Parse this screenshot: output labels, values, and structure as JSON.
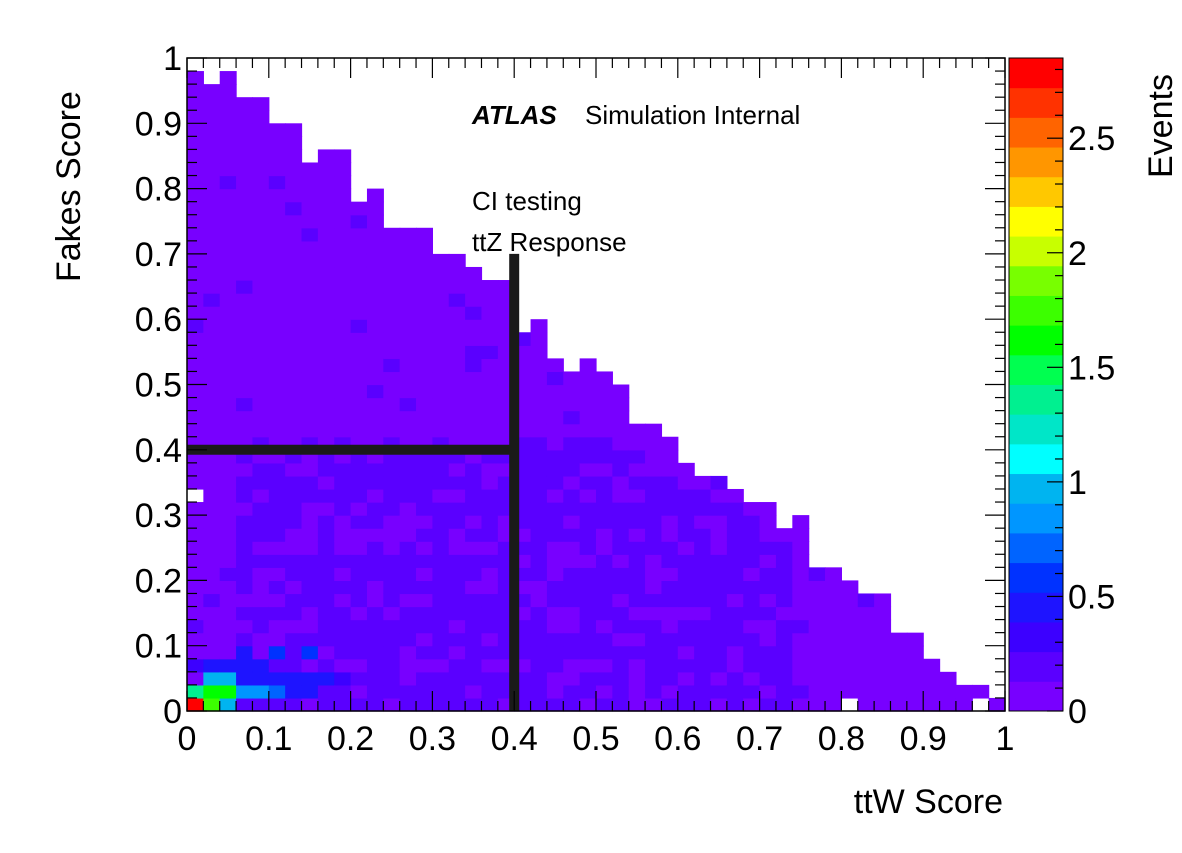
{
  "chart_data": {
    "type": "heatmap",
    "title": "",
    "xlabel": "ttW Score",
    "ylabel": "Fakes Score",
    "zlabel": "Events",
    "xlim": [
      0,
      1
    ],
    "ylim": [
      0,
      1
    ],
    "zlim": [
      0,
      2.85
    ],
    "grid": false,
    "nbins": 50,
    "x_ticks": [
      "0",
      "0.1",
      "0.2",
      "0.3",
      "0.4",
      "0.5",
      "0.6",
      "0.7",
      "0.8",
      "0.9",
      "1"
    ],
    "y_ticks": [
      "0",
      "0.1",
      "0.2",
      "0.3",
      "0.4",
      "0.5",
      "0.6",
      "0.7",
      "0.8",
      "0.9",
      "1"
    ],
    "z_ticks": [
      "0",
      "0.5",
      "1",
      "1.5",
      "2",
      "2.5"
    ],
    "annotations": {
      "atlas_label": "ATLAS",
      "atlas_sublabel": "Simulation Internal",
      "line1": "CI testing",
      "line2": "ttZ Response"
    },
    "cut_lines": [
      {
        "orientation": "vertical",
        "x": 0.4,
        "y_range": [
          0,
          0.7
        ]
      },
      {
        "orientation": "horizontal",
        "y": 0.4,
        "x_range": [
          0,
          0.4
        ]
      }
    ],
    "palette": [
      "#7800ff",
      "#5a00ff",
      "#3c00ff",
      "#1e14ff",
      "#0032ff",
      "#0064ff",
      "#0096ff",
      "#00b4f0",
      "#00ffff",
      "#00e6c8",
      "#00f090",
      "#00ff50",
      "#00ff00",
      "#3cff00",
      "#78ff00",
      "#c8ff00",
      "#ffff00",
      "#ffc800",
      "#ff9600",
      "#ff6400",
      "#ff3200",
      "#ff0000"
    ],
    "hot_bins": [
      {
        "x": 0.01,
        "y": 0.01,
        "value": 2.8
      },
      {
        "x": 0.03,
        "y": 0.01,
        "value": 1.8
      },
      {
        "x": 0.05,
        "y": 0.01,
        "value": 0.95
      },
      {
        "x": 0.01,
        "y": 0.03,
        "value": 1.3
      },
      {
        "x": 0.03,
        "y": 0.03,
        "value": 1.6
      },
      {
        "x": 0.05,
        "y": 0.03,
        "value": 1.6
      },
      {
        "x": 0.07,
        "y": 0.03,
        "value": 0.9
      },
      {
        "x": 0.09,
        "y": 0.03,
        "value": 0.8
      },
      {
        "x": 0.11,
        "y": 0.03,
        "value": 0.65
      },
      {
        "x": 0.13,
        "y": 0.03,
        "value": 0.5
      },
      {
        "x": 0.15,
        "y": 0.03,
        "value": 0.5
      },
      {
        "x": 0.03,
        "y": 0.05,
        "value": 0.95
      },
      {
        "x": 0.05,
        "y": 0.05,
        "value": 0.95
      },
      {
        "x": 0.07,
        "y": 0.05,
        "value": 0.5
      },
      {
        "x": 0.09,
        "y": 0.05,
        "value": 0.5
      },
      {
        "x": 0.11,
        "y": 0.05,
        "value": 0.5
      },
      {
        "x": 0.13,
        "y": 0.05,
        "value": 0.45
      },
      {
        "x": 0.15,
        "y": 0.05,
        "value": 0.45
      },
      {
        "x": 0.03,
        "y": 0.07,
        "value": 0.45
      },
      {
        "x": 0.05,
        "y": 0.07,
        "value": 0.45
      },
      {
        "x": 0.07,
        "y": 0.07,
        "value": 0.4
      },
      {
        "x": 0.09,
        "y": 0.07,
        "value": 0.45
      },
      {
        "x": 0.01,
        "y": 0.07,
        "value": 0.3
      },
      {
        "x": 0.11,
        "y": 0.09,
        "value": 0.6
      },
      {
        "x": 0.15,
        "y": 0.09,
        "value": 0.55
      },
      {
        "x": 0.07,
        "y": 0.09,
        "value": 0.5
      },
      {
        "x": 0.19,
        "y": 0.05,
        "value": 0.35
      },
      {
        "x": 0.17,
        "y": 0.05,
        "value": 0.4
      }
    ],
    "empty_bins": [
      {
        "x": 0.01,
        "y": 0.33
      },
      {
        "x": 0.81,
        "y": 0.01
      },
      {
        "x": 0.97,
        "y": 0.01
      }
    ]
  }
}
